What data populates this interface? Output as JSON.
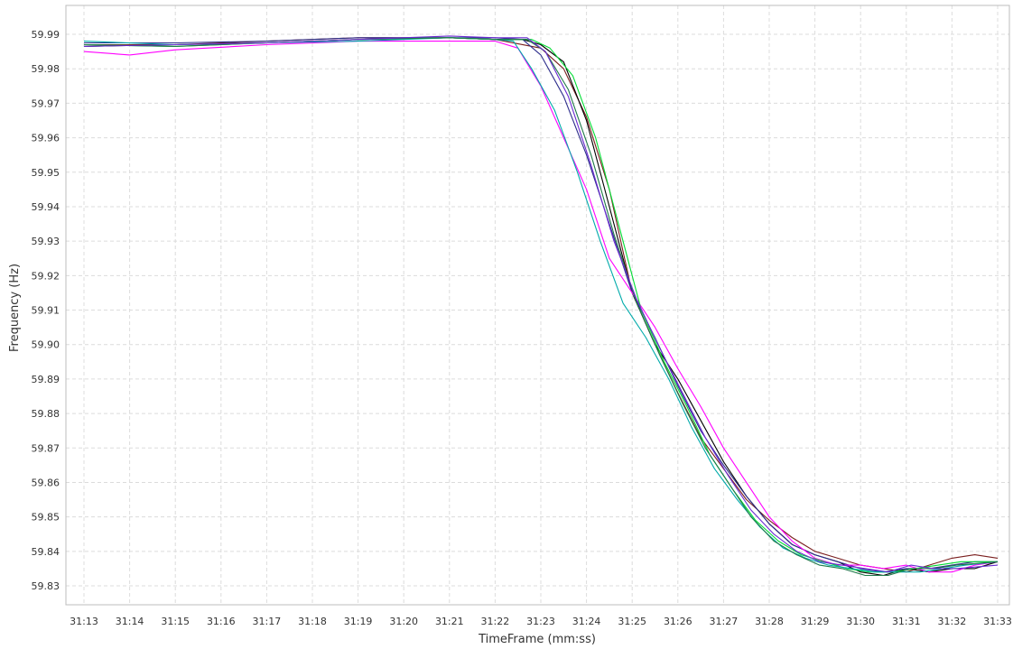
{
  "chart_data": {
    "type": "line",
    "xlabel": "TimeFrame (mm:ss)",
    "ylabel": "Frequency (Hz)",
    "xlim": [
      0,
      20
    ],
    "ylim": [
      59.825,
      59.993
    ],
    "x_ticks": [
      "31:13",
      "31:14",
      "31:15",
      "31:16",
      "31:17",
      "31:18",
      "31:19",
      "31:20",
      "31:21",
      "31:22",
      "31:23",
      "31:24",
      "31:25",
      "31:26",
      "31:27",
      "31:28",
      "31:29",
      "31:30",
      "31:31",
      "31:32",
      "31:33"
    ],
    "y_ticks": [
      "59.99",
      "59.98",
      "59.97",
      "59.96",
      "59.95",
      "59.94",
      "59.93",
      "59.92",
      "59.91",
      "59.90",
      "59.89",
      "59.88",
      "59.87",
      "59.86",
      "59.85",
      "59.84",
      "59.83"
    ],
    "grid": true,
    "legend": "none",
    "x_unit": "seconds after 31:13",
    "series": [
      {
        "color": "#7a1f1f",
        "points": [
          [
            0,
            59.987
          ],
          [
            2,
            59.987
          ],
          [
            4,
            59.988
          ],
          [
            6,
            59.989
          ],
          [
            8,
            59.989
          ],
          [
            9,
            59.9885
          ],
          [
            10,
            59.986
          ],
          [
            10.5,
            59.98
          ],
          [
            11,
            59.966
          ],
          [
            11.5,
            59.945
          ],
          [
            12,
            59.915
          ],
          [
            12.5,
            59.9
          ],
          [
            13,
            59.886
          ],
          [
            13.5,
            59.873
          ],
          [
            14,
            59.864
          ],
          [
            14.5,
            59.855
          ],
          [
            15,
            59.849
          ],
          [
            15.5,
            59.844
          ],
          [
            16,
            59.84
          ],
          [
            16.5,
            59.838
          ],
          [
            17,
            59.836
          ],
          [
            17.5,
            59.835
          ],
          [
            18,
            59.834
          ],
          [
            18.5,
            59.836
          ],
          [
            19,
            59.838
          ],
          [
            19.5,
            59.839
          ],
          [
            20,
            59.838
          ]
        ]
      },
      {
        "color": "#000000",
        "points": [
          [
            0,
            59.9865
          ],
          [
            2,
            59.987
          ],
          [
            4,
            59.9875
          ],
          [
            6,
            59.9885
          ],
          [
            8,
            59.989
          ],
          [
            9,
            59.9885
          ],
          [
            9.6,
            59.9885
          ],
          [
            10,
            59.987
          ],
          [
            10.5,
            59.982
          ],
          [
            11,
            59.965
          ],
          [
            11.5,
            59.94
          ],
          [
            12,
            59.915
          ],
          [
            12.5,
            59.9
          ],
          [
            13,
            59.89
          ],
          [
            13.5,
            59.878
          ],
          [
            14,
            59.866
          ],
          [
            14.5,
            59.856
          ],
          [
            15,
            59.848
          ],
          [
            15.5,
            59.842
          ],
          [
            16,
            59.839
          ],
          [
            16.5,
            59.837
          ],
          [
            17,
            59.834
          ],
          [
            17.5,
            59.833
          ],
          [
            18,
            59.835
          ],
          [
            18.5,
            59.834
          ],
          [
            19,
            59.835
          ],
          [
            19.5,
            59.835
          ],
          [
            20,
            59.837
          ]
        ]
      },
      {
        "color": "#2e2e8c",
        "points": [
          [
            0,
            59.9875
          ],
          [
            2,
            59.9875
          ],
          [
            4,
            59.988
          ],
          [
            6,
            59.989
          ],
          [
            8,
            59.989
          ],
          [
            9,
            59.989
          ],
          [
            9.6,
            59.9885
          ],
          [
            10,
            59.984
          ],
          [
            10.5,
            59.972
          ],
          [
            11,
            59.955
          ],
          [
            11.5,
            59.935
          ],
          [
            12,
            59.915
          ],
          [
            12.5,
            59.902
          ],
          [
            13,
            59.888
          ],
          [
            13.5,
            59.875
          ],
          [
            14,
            59.865
          ],
          [
            14.5,
            59.856
          ],
          [
            15,
            59.848
          ],
          [
            15.5,
            59.842
          ],
          [
            16,
            59.839
          ],
          [
            16.5,
            59.837
          ],
          [
            17,
            59.835
          ],
          [
            17.5,
            59.834
          ],
          [
            18,
            59.835
          ],
          [
            18.5,
            59.835
          ],
          [
            19,
            59.836
          ],
          [
            19.5,
            59.837
          ],
          [
            20,
            59.837
          ]
        ]
      },
      {
        "color": "#ff00ff",
        "points": [
          [
            0,
            59.985
          ],
          [
            1,
            59.984
          ],
          [
            2,
            59.9855
          ],
          [
            4,
            59.987
          ],
          [
            6,
            59.988
          ],
          [
            8,
            59.988
          ],
          [
            9,
            59.988
          ],
          [
            9.5,
            59.986
          ],
          [
            10,
            59.975
          ],
          [
            10.5,
            59.96
          ],
          [
            11,
            59.945
          ],
          [
            11.5,
            59.925
          ],
          [
            12,
            59.915
          ],
          [
            12.5,
            59.905
          ],
          [
            13,
            59.893
          ],
          [
            13.5,
            59.882
          ],
          [
            14,
            59.87
          ],
          [
            14.5,
            59.86
          ],
          [
            15,
            59.85
          ],
          [
            15.5,
            59.843
          ],
          [
            16,
            59.838
          ],
          [
            16.5,
            59.836
          ],
          [
            17,
            59.836
          ],
          [
            17.5,
            59.835
          ],
          [
            18,
            59.836
          ],
          [
            18.5,
            59.834
          ],
          [
            19,
            59.834
          ],
          [
            19.5,
            59.836
          ],
          [
            20,
            59.837
          ]
        ]
      },
      {
        "color": "#00dd33",
        "points": [
          [
            0,
            59.987
          ],
          [
            2,
            59.9865
          ],
          [
            4,
            59.9875
          ],
          [
            6,
            59.9885
          ],
          [
            8,
            59.989
          ],
          [
            9,
            59.9885
          ],
          [
            9.8,
            59.9885
          ],
          [
            10.2,
            59.986
          ],
          [
            10.7,
            59.978
          ],
          [
            11.2,
            59.96
          ],
          [
            11.7,
            59.935
          ],
          [
            12.2,
            59.91
          ],
          [
            12.7,
            59.895
          ],
          [
            13.2,
            59.882
          ],
          [
            13.7,
            59.868
          ],
          [
            14.2,
            59.858
          ],
          [
            14.7,
            59.849
          ],
          [
            15.2,
            59.843
          ],
          [
            15.7,
            59.839
          ],
          [
            16.2,
            59.837
          ],
          [
            16.7,
            59.835
          ],
          [
            17.2,
            59.834
          ],
          [
            17.7,
            59.834
          ],
          [
            18.2,
            59.835
          ],
          [
            18.7,
            59.836
          ],
          [
            19.2,
            59.837
          ],
          [
            20,
            59.837
          ]
        ]
      },
      {
        "color": "#00aaaa",
        "points": [
          [
            0,
            59.988
          ],
          [
            2,
            59.987
          ],
          [
            4,
            59.9875
          ],
          [
            6,
            59.988
          ],
          [
            8,
            59.989
          ],
          [
            9,
            59.9885
          ],
          [
            9.4,
            59.988
          ],
          [
            9.8,
            59.98
          ],
          [
            10.3,
            59.968
          ],
          [
            10.8,
            59.95
          ],
          [
            11.3,
            59.93
          ],
          [
            11.8,
            59.912
          ],
          [
            12.3,
            59.902
          ],
          [
            12.8,
            59.89
          ],
          [
            13.3,
            59.876
          ],
          [
            13.8,
            59.864
          ],
          [
            14.3,
            59.855
          ],
          [
            14.8,
            59.847
          ],
          [
            15.3,
            59.841
          ],
          [
            15.8,
            59.838
          ],
          [
            16.3,
            59.836
          ],
          [
            16.8,
            59.835
          ],
          [
            17.3,
            59.834
          ],
          [
            17.8,
            59.834
          ],
          [
            18.3,
            59.834
          ],
          [
            18.8,
            59.835
          ],
          [
            19.3,
            59.836
          ],
          [
            20,
            59.837
          ]
        ]
      },
      {
        "color": "#1f7a4a",
        "points": [
          [
            0,
            59.987
          ],
          [
            2,
            59.9865
          ],
          [
            4,
            59.9875
          ],
          [
            6,
            59.9885
          ],
          [
            8,
            59.989
          ],
          [
            9,
            59.9885
          ],
          [
            9.7,
            59.9885
          ],
          [
            10.1,
            59.985
          ],
          [
            10.6,
            59.974
          ],
          [
            11.1,
            59.955
          ],
          [
            11.6,
            59.932
          ],
          [
            12.1,
            59.912
          ],
          [
            12.6,
            59.897
          ],
          [
            13.1,
            59.883
          ],
          [
            13.6,
            59.87
          ],
          [
            14.1,
            59.86
          ],
          [
            14.6,
            59.85
          ],
          [
            15.1,
            59.843
          ],
          [
            15.6,
            59.839
          ],
          [
            16.1,
            59.836
          ],
          [
            16.6,
            59.835
          ],
          [
            17.1,
            59.833
          ],
          [
            17.6,
            59.833
          ],
          [
            18.1,
            59.835
          ],
          [
            18.6,
            59.835
          ],
          [
            19.1,
            59.836
          ],
          [
            20,
            59.837
          ]
        ]
      },
      {
        "color": "#6a2ad1",
        "points": [
          [
            0,
            59.9865
          ],
          [
            2,
            59.987
          ],
          [
            4,
            59.9875
          ],
          [
            6,
            59.9885
          ],
          [
            8,
            59.9895
          ],
          [
            9,
            59.989
          ],
          [
            9.7,
            59.989
          ],
          [
            10.1,
            59.985
          ],
          [
            10.6,
            59.972
          ],
          [
            11.1,
            59.952
          ],
          [
            11.6,
            59.93
          ],
          [
            12.1,
            59.913
          ],
          [
            12.6,
            59.899
          ],
          [
            13.1,
            59.886
          ],
          [
            13.6,
            59.873
          ],
          [
            14.1,
            59.862
          ],
          [
            14.6,
            59.852
          ],
          [
            15.1,
            59.845
          ],
          [
            15.6,
            59.84
          ],
          [
            16.1,
            59.837
          ],
          [
            16.6,
            59.836
          ],
          [
            17.1,
            59.835
          ],
          [
            17.6,
            59.834
          ],
          [
            18.1,
            59.836
          ],
          [
            18.6,
            59.835
          ],
          [
            19.1,
            59.835
          ],
          [
            20,
            59.836
          ]
        ]
      }
    ]
  }
}
